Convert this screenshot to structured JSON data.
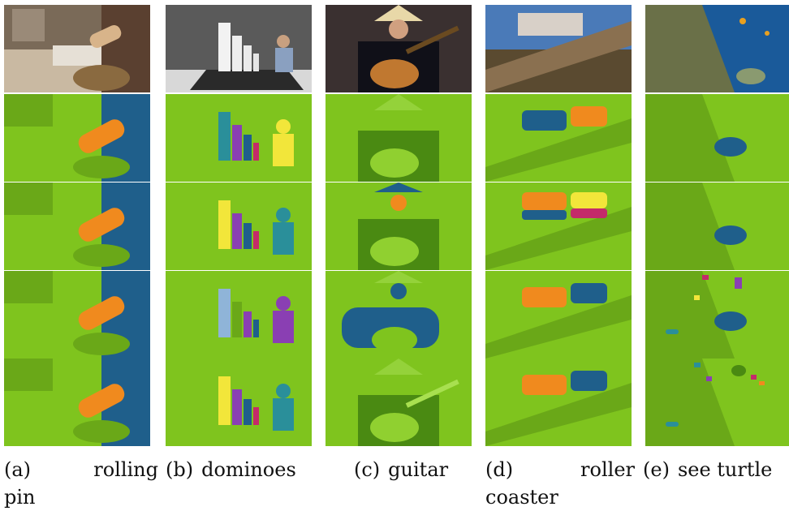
{
  "figure": {
    "captions": [
      {
        "label": "(a)",
        "text_line1": "rolling",
        "text_line2": "pin"
      },
      {
        "label": "(b)",
        "text_line1": "dominoes",
        "text_line2": ""
      },
      {
        "label": "(c)",
        "text_line1": "guitar",
        "text_line2": ""
      },
      {
        "label": "(d)",
        "text_line1": "roller",
        "text_line2": "coaster"
      },
      {
        "label": "(e)",
        "text_line1": "see turtle",
        "text_line2": ""
      }
    ],
    "palette": {
      "overlay_green": "#7fc41e",
      "mask_blue": "#1f5f8b",
      "mask_orange": "#f08a1e",
      "mask_yellow": "#f2e63a",
      "mask_purple": "#8a3fb3",
      "mask_teal": "#2a8f9a",
      "mask_magenta": "#c42a6a",
      "mask_lightblue": "#8fb4d8"
    }
  }
}
